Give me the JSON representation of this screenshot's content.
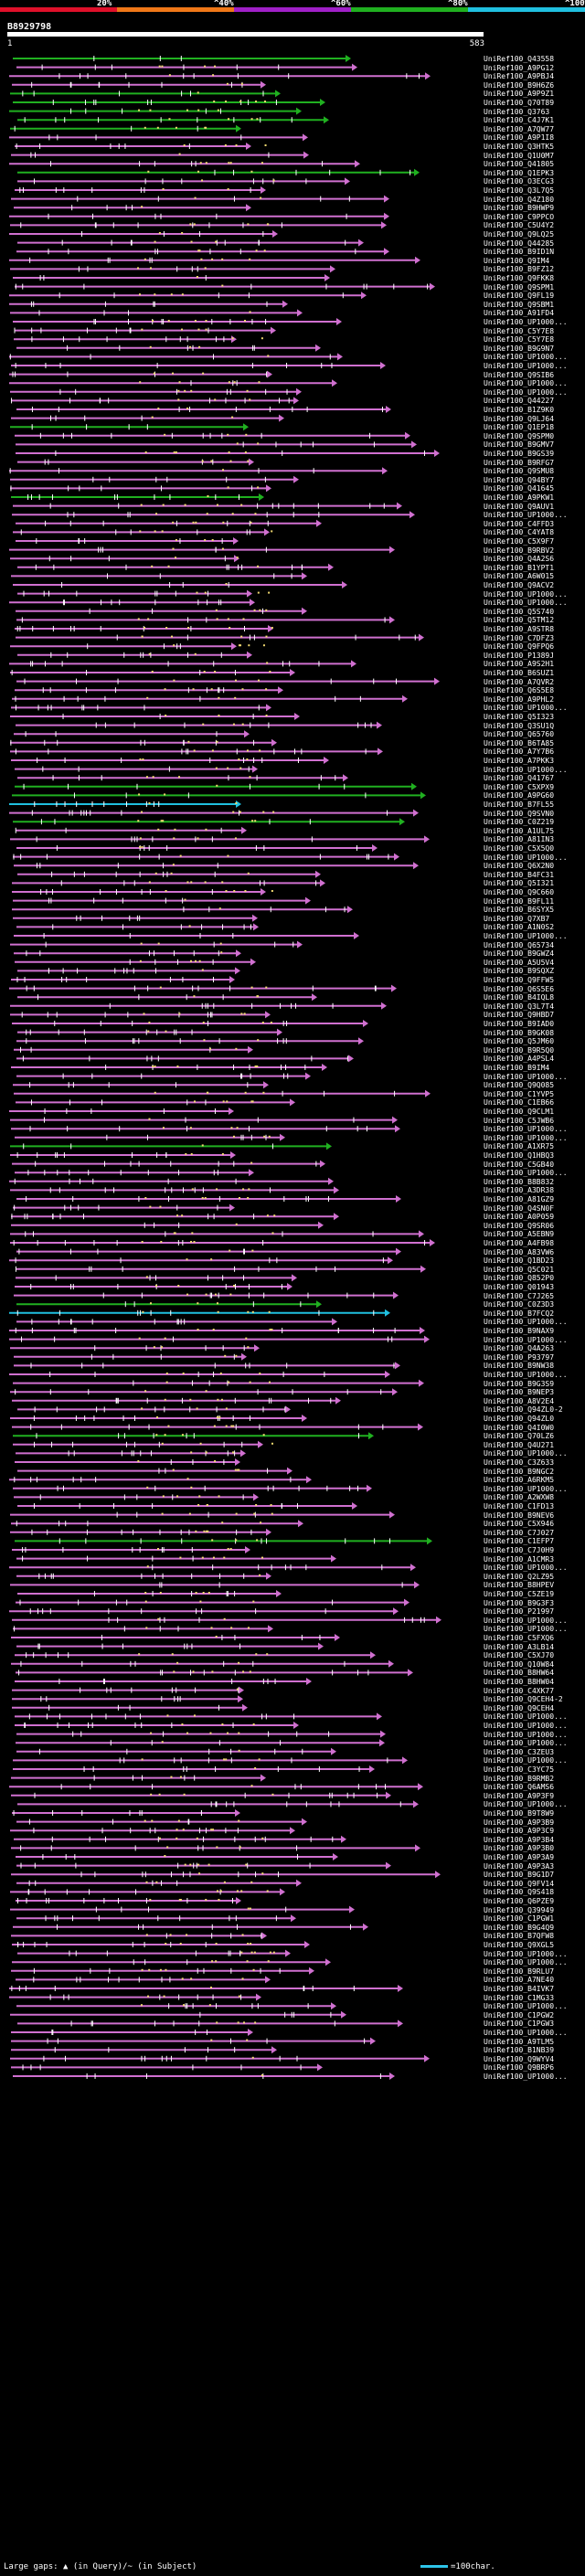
{
  "legend": [
    {
      "label": "20%",
      "color": "#e0102a"
    },
    {
      "label": "^40%",
      "color": "#f07818"
    },
    {
      "label": "^60%",
      "color": "#a020c8"
    },
    {
      "label": "^80%",
      "color": "#20b020"
    },
    {
      "label": "^100%",
      "color": "#20c0e0"
    }
  ],
  "query": {
    "name": "B8929798",
    "start": "1",
    "end": "583"
  },
  "hits": [
    {
      "name": "UniRef100_Q43558",
      "color": "#20b020"
    },
    {
      "name": "UniRef100_A9PG12",
      "color": "#d070d0"
    },
    {
      "name": "UniRef100_A9PBJ4",
      "color": "#d070d0"
    },
    {
      "name": "UniRef100_B9H6Z6",
      "color": "#d070d0"
    },
    {
      "name": "UniRef100_A9P9Z1",
      "color": "#20b020"
    },
    {
      "name": "UniRef100_Q70T89",
      "color": "#20b020"
    },
    {
      "name": "UniRef100_Q3763",
      "color": "#20b020"
    },
    {
      "name": "UniRef100_C4J7K1",
      "color": "#20b020"
    },
    {
      "name": "UniRef100_A7QW77",
      "color": "#20b020"
    },
    {
      "name": "UniRef100_A9P1I8",
      "color": "#d070d0"
    },
    {
      "name": "UniRef100_Q3HTK5",
      "color": "#d070d0"
    },
    {
      "name": "UniRef100_Q1U0M7",
      "color": "#d070d0"
    },
    {
      "name": "UniRef100_Q41805",
      "color": "#d070d0"
    },
    {
      "name": "UniRef100_Q1EPK3",
      "color": "#20b020"
    },
    {
      "name": "UniRef100_O3ECG3",
      "color": "#d070d0"
    },
    {
      "name": "UniRef100_Q3L7Q5",
      "color": "#d070d0"
    },
    {
      "name": "UniRef100_Q4Z180",
      "color": "#d070d0"
    },
    {
      "name": "UniRef100_B9HWP9",
      "color": "#d070d0"
    },
    {
      "name": "UniRef100_C9PPCO",
      "color": "#d070d0"
    },
    {
      "name": "UniRef100_C5U4Y2",
      "color": "#d070d0"
    },
    {
      "name": "UniRef100_Q9LQ25",
      "color": "#d070d0"
    },
    {
      "name": "UniRef100_Q44285",
      "color": "#d070d0"
    },
    {
      "name": "UniRef100_B9ID1N",
      "color": "#d070d0"
    },
    {
      "name": "UniRef100_Q9IM4",
      "color": "#d070d0"
    },
    {
      "name": "UniRef100_B9FZ12",
      "color": "#d070d0"
    },
    {
      "name": "UniRef100_Q9FKK8",
      "color": "#d070d0"
    },
    {
      "name": "UniRef100_Q9SPM1",
      "color": "#d070d0"
    },
    {
      "name": "UniRef100_Q9FL19",
      "color": "#d070d0"
    },
    {
      "name": "UniRef100_Q9SBM1",
      "color": "#d070d0"
    },
    {
      "name": "UniRef100_A91FD4",
      "color": "#d070d0"
    },
    {
      "name": "UniRef100_UP1000...",
      "color": "#d070d0"
    },
    {
      "name": "UniRef100_C5Y7E8",
      "color": "#d070d0"
    },
    {
      "name": "UniRef100_C5Y7E8",
      "color": "#d070d0"
    },
    {
      "name": "UniRef100_B9G9N7",
      "color": "#d070d0"
    },
    {
      "name": "UniRef100_UP1000...",
      "color": "#d070d0"
    },
    {
      "name": "UniRef100_UP1000...",
      "color": "#d070d0"
    },
    {
      "name": "UniRef100_Q9SIB6",
      "color": "#d070d0"
    },
    {
      "name": "UniRef100_UP1000...",
      "color": "#d070d0"
    },
    {
      "name": "UniRef100_UP1000...",
      "color": "#d070d0"
    },
    {
      "name": "UniRef100_Q44227",
      "color": "#d070d0"
    },
    {
      "name": "UniRef100_B1Z9K0",
      "color": "#d070d0"
    },
    {
      "name": "UniRef100_Q9LJ64",
      "color": "#d070d0"
    },
    {
      "name": "UniRef100_Q1EP18",
      "color": "#20b020"
    },
    {
      "name": "UniRef100_Q9SPM0",
      "color": "#d070d0"
    },
    {
      "name": "UniRef100_B9GMV7",
      "color": "#d070d0"
    },
    {
      "name": "UniRef100_B9GS39",
      "color": "#d070d0"
    },
    {
      "name": "UniRef100_B9RFG7",
      "color": "#d070d0"
    },
    {
      "name": "UniRef100_Q9SMU8",
      "color": "#d070d0"
    },
    {
      "name": "UniRef100_Q94BY7",
      "color": "#d070d0"
    },
    {
      "name": "UniRef100_Q41645",
      "color": "#d070d0"
    },
    {
      "name": "UniRef100_A9PKW1",
      "color": "#20b020"
    },
    {
      "name": "UniRef100_Q9AUV1",
      "color": "#d070d0"
    },
    {
      "name": "UniRef100_UP1000...",
      "color": "#d070d0"
    },
    {
      "name": "UniRef100_C4FFD3",
      "color": "#d070d0"
    },
    {
      "name": "UniRef100_C4YAT8",
      "color": "#d070d0"
    },
    {
      "name": "UniRef100_C5X9F7",
      "color": "#d070d0"
    },
    {
      "name": "UniRef100_B9RBV2",
      "color": "#d070d0"
    },
    {
      "name": "UniRef100_Q4A2S6",
      "color": "#d070d0"
    },
    {
      "name": "UniRef100_B1YPT1",
      "color": "#d070d0"
    },
    {
      "name": "UniRef100_A6W015",
      "color": "#d070d0"
    },
    {
      "name": "UniRef100_Q9ACV2",
      "color": "#d070d0"
    },
    {
      "name": "UniRef100_UP1000...",
      "color": "#d070d0"
    },
    {
      "name": "UniRef100_UP1000...",
      "color": "#d070d0"
    },
    {
      "name": "UniRef100_Q5S740",
      "color": "#d070d0"
    },
    {
      "name": "UniRef100_Q5TM12",
      "color": "#d070d0"
    },
    {
      "name": "UniRef100_A9STR8",
      "color": "#d070d0"
    },
    {
      "name": "UniRef100_C7DFZ3",
      "color": "#d070d0"
    },
    {
      "name": "UniRef100_Q9FPQ6",
      "color": "#d070d0"
    },
    {
      "name": "UniRef100_P1389J",
      "color": "#d070d0"
    },
    {
      "name": "UniRef100_A9S2H1",
      "color": "#d070d0"
    },
    {
      "name": "UniRef100_B6SUZ1",
      "color": "#d070d0"
    },
    {
      "name": "UniRef100_A7QVR2",
      "color": "#d070d0"
    },
    {
      "name": "UniRef100_Q6S5E8",
      "color": "#d070d0"
    },
    {
      "name": "UniRef100_A9PHL2",
      "color": "#d070d0"
    },
    {
      "name": "UniRef100_UP1000...",
      "color": "#d070d0"
    },
    {
      "name": "UniRef100_Q5I323",
      "color": "#d070d0"
    },
    {
      "name": "UniRef100_Q3SU1Q",
      "color": "#d070d0"
    },
    {
      "name": "UniRef100_Q65760",
      "color": "#d070d0"
    },
    {
      "name": "UniRef100_B6TA85",
      "color": "#d070d0"
    },
    {
      "name": "UniRef100_A7Y7B6",
      "color": "#d070d0"
    },
    {
      "name": "UniRef100_A7PKK3",
      "color": "#d070d0"
    },
    {
      "name": "UniRef100_UP1000...",
      "color": "#d070d0"
    },
    {
      "name": "UniRef100_Q41767",
      "color": "#d070d0"
    },
    {
      "name": "UniRef100_C5XPX9",
      "color": "#20b020"
    },
    {
      "name": "UniRef100_A9PG60",
      "color": "#20b020"
    },
    {
      "name": "UniRef100_B7FL55",
      "color": "#20c0e0"
    },
    {
      "name": "UniRef100_Q9SVN0",
      "color": "#d070d0"
    },
    {
      "name": "UniRef100_C0Z219",
      "color": "#20b020"
    },
    {
      "name": "UniRef100_A1UL75",
      "color": "#d070d0"
    },
    {
      "name": "UniRef100_A81IN3",
      "color": "#d070d0"
    },
    {
      "name": "UniRef100_C5X5Q0",
      "color": "#d070d0"
    },
    {
      "name": "UniRef100_UP1000...",
      "color": "#d070d0"
    },
    {
      "name": "UniRef100_Q6X2N0",
      "color": "#d070d0"
    },
    {
      "name": "UniRef100_B4FC31",
      "color": "#d070d0"
    },
    {
      "name": "UniRef100_Q5I321",
      "color": "#d070d0"
    },
    {
      "name": "UniRef100_Q9C660",
      "color": "#d070d0"
    },
    {
      "name": "UniRef100_B9FL11",
      "color": "#d070d0"
    },
    {
      "name": "UniRef100_B6SYX5",
      "color": "#d070d0"
    },
    {
      "name": "UniRef100_Q7XB7",
      "color": "#d070d0"
    },
    {
      "name": "UniRef100_A1N0S2",
      "color": "#d070d0"
    },
    {
      "name": "UniRef100_UP1000...",
      "color": "#d070d0"
    },
    {
      "name": "UniRef100_Q65734",
      "color": "#d070d0"
    },
    {
      "name": "UniRef100_B9GWZ4",
      "color": "#d070d0"
    },
    {
      "name": "UniRef100_A5U5V4",
      "color": "#d070d0"
    },
    {
      "name": "UniRef100_B9SQXZ",
      "color": "#d070d0"
    },
    {
      "name": "UniRef100_Q9FFW5",
      "color": "#d070d0"
    },
    {
      "name": "UniRef100_Q6S5E6",
      "color": "#d070d0"
    },
    {
      "name": "UniRef100_B4IQL8",
      "color": "#d070d0"
    },
    {
      "name": "UniRef100_Q3L7T4",
      "color": "#d070d0"
    },
    {
      "name": "UniRef100_Q9HBD7",
      "color": "#d070d0"
    },
    {
      "name": "UniRef100_B9IAD0",
      "color": "#d070d0"
    },
    {
      "name": "UniRef100_B9GK08",
      "color": "#d070d0"
    },
    {
      "name": "UniRef100_Q5JM60",
      "color": "#d070d0"
    },
    {
      "name": "UniRef100_B9R5Q0",
      "color": "#d070d0"
    },
    {
      "name": "UniRef100_A4PSL4",
      "color": "#d070d0"
    },
    {
      "name": "UniRef100_B9IM4",
      "color": "#d070d0"
    },
    {
      "name": "UniRef100_UP1000...",
      "color": "#d070d0"
    },
    {
      "name": "UniRef100_Q9Q085",
      "color": "#d070d0"
    },
    {
      "name": "UniRef100_C1YVP5",
      "color": "#d070d0"
    },
    {
      "name": "UniRef100_C1EB66",
      "color": "#d070d0"
    },
    {
      "name": "UniRef100_Q9CLM1",
      "color": "#d070d0"
    },
    {
      "name": "UniRef100_C5JWB6",
      "color": "#d070d0"
    },
    {
      "name": "UniRef100_UP1000...",
      "color": "#d070d0"
    },
    {
      "name": "UniRef100_UP1000...",
      "color": "#d070d0"
    },
    {
      "name": "UniRef100_A1XR75",
      "color": "#20b020"
    },
    {
      "name": "UniRef100_Q1HBQ3",
      "color": "#d070d0"
    },
    {
      "name": "UniRef100_C5GB40",
      "color": "#d070d0"
    },
    {
      "name": "UniRef100_UP1000...",
      "color": "#d070d0"
    },
    {
      "name": "UniRef100_B8B832",
      "color": "#d070d0"
    },
    {
      "name": "UniRef100_A3DR38",
      "color": "#d070d0"
    },
    {
      "name": "UniRef100_A81GZ9",
      "color": "#d070d0"
    },
    {
      "name": "UniRef100_Q4SN0F",
      "color": "#d070d0"
    },
    {
      "name": "UniRef100_A0P059",
      "color": "#d070d0"
    },
    {
      "name": "UniRef100_Q9SR06",
      "color": "#d070d0"
    },
    {
      "name": "UniRef100_A5EBN9",
      "color": "#d070d0"
    },
    {
      "name": "UniRef100_A4FB98",
      "color": "#d070d0"
    },
    {
      "name": "UniRef100_A83VW6",
      "color": "#d070d0"
    },
    {
      "name": "UniRef100_Q1BD23",
      "color": "#d070d0"
    },
    {
      "name": "UniRef100_Q5C021",
      "color": "#d070d0"
    },
    {
      "name": "UniRef100_Q852P0",
      "color": "#d070d0"
    },
    {
      "name": "UniRef100_Q01943",
      "color": "#d070d0"
    },
    {
      "name": "UniRef100_C7J265",
      "color": "#d070d0"
    },
    {
      "name": "UniRef100_C0Z3D3",
      "color": "#20b020"
    },
    {
      "name": "UniRef100_B7FCQ2",
      "color": "#20c0e0"
    },
    {
      "name": "UniRef100_UP1000...",
      "color": "#d070d0"
    },
    {
      "name": "UniRef100_B9NAX9",
      "color": "#d070d0"
    },
    {
      "name": "UniRef100_UP1000...",
      "color": "#d070d0"
    },
    {
      "name": "UniRef100_Q4A263",
      "color": "#d070d0"
    },
    {
      "name": "UniRef100_P93797",
      "color": "#d070d0"
    },
    {
      "name": "UniRef100_B9NW38",
      "color": "#d070d0"
    },
    {
      "name": "UniRef100_UP1000...",
      "color": "#d070d0"
    },
    {
      "name": "UniRef100_B9G3S9",
      "color": "#d070d0"
    },
    {
      "name": "UniRef100_B9NEP3",
      "color": "#d070d0"
    },
    {
      "name": "UniRef100_A8V2E4",
      "color": "#d070d0"
    },
    {
      "name": "UniRef100_Q94ZL0-2",
      "color": "#d070d0"
    },
    {
      "name": "UniRef100_Q94ZL0",
      "color": "#d070d0"
    },
    {
      "name": "UniRef100_Q4I0W0",
      "color": "#d070d0"
    },
    {
      "name": "UniRef100_Q70LZ6",
      "color": "#20b020"
    },
    {
      "name": "UniRef100_Q4U271",
      "color": "#d070d0"
    },
    {
      "name": "UniRef100_UP1000...",
      "color": "#d070d0"
    },
    {
      "name": "UniRef100_C3Z633",
      "color": "#d070d0"
    },
    {
      "name": "UniRef100_B9NGC2",
      "color": "#d070d0"
    },
    {
      "name": "UniRef100_A6RKM5",
      "color": "#d070d0"
    },
    {
      "name": "UniRef100_UP1000...",
      "color": "#d070d0"
    },
    {
      "name": "UniRef100_A2WXW8",
      "color": "#d070d0"
    },
    {
      "name": "UniRef100_C1FD13",
      "color": "#d070d0"
    },
    {
      "name": "UniRef100_B9NEV6",
      "color": "#d070d0"
    },
    {
      "name": "UniRef100_C5X946",
      "color": "#d070d0"
    },
    {
      "name": "UniRef100_C7J027",
      "color": "#d070d0"
    },
    {
      "name": "UniRef100_C1EFP7",
      "color": "#20b020"
    },
    {
      "name": "UniRef100_C7J0H9",
      "color": "#d070d0"
    },
    {
      "name": "UniRef100_A1CMR3",
      "color": "#d070d0"
    },
    {
      "name": "UniRef100_UP1000...",
      "color": "#d070d0"
    },
    {
      "name": "UniRef100_Q2LZ95",
      "color": "#d070d0"
    },
    {
      "name": "UniRef100_B8HPEV",
      "color": "#d070d0"
    },
    {
      "name": "UniRef100_C5ZE19",
      "color": "#d070d0"
    },
    {
      "name": "UniRef100_B9G3F3",
      "color": "#d070d0"
    },
    {
      "name": "UniRef100_P21997",
      "color": "#d070d0"
    },
    {
      "name": "UniRef100_UP1000...",
      "color": "#d070d0"
    },
    {
      "name": "UniRef100_UP1000...",
      "color": "#d070d0"
    },
    {
      "name": "UniRef100_C5FXQ6",
      "color": "#d070d0"
    },
    {
      "name": "UniRef100_A3LB14",
      "color": "#d070d0"
    },
    {
      "name": "UniRef100_C5XJ70",
      "color": "#d070d0"
    },
    {
      "name": "UniRef100_Q10W84",
      "color": "#d070d0"
    },
    {
      "name": "UniRef100_B8HW64",
      "color": "#d070d0"
    },
    {
      "name": "UniRef100_B8HW04",
      "color": "#d070d0"
    },
    {
      "name": "UniRef100_C4XK77",
      "color": "#d070d0"
    },
    {
      "name": "UniRef100_Q9CEH4-2",
      "color": "#d070d0"
    },
    {
      "name": "UniRef100_Q9CEH4",
      "color": "#d070d0"
    },
    {
      "name": "UniRef100_UP1000...",
      "color": "#d070d0"
    },
    {
      "name": "UniRef100_UP1000...",
      "color": "#d070d0"
    },
    {
      "name": "UniRef100_UP1000...",
      "color": "#d070d0"
    },
    {
      "name": "UniRef100_UP1000...",
      "color": "#d070d0"
    },
    {
      "name": "UniRef100_C3ZEU3",
      "color": "#d070d0"
    },
    {
      "name": "UniRef100_UP1000...",
      "color": "#d070d0"
    },
    {
      "name": "UniRef100_C3YC75",
      "color": "#d070d0"
    },
    {
      "name": "UniRef100_B9RMB2",
      "color": "#d070d0"
    },
    {
      "name": "UniRef100_Q6AMS6",
      "color": "#d070d0"
    },
    {
      "name": "UniRef100_A9P3F9",
      "color": "#d070d0"
    },
    {
      "name": "UniRef100_UP1000...",
      "color": "#d070d0"
    },
    {
      "name": "UniRef100_B9T8W9",
      "color": "#d070d0"
    },
    {
      "name": "UniRef100_A9P3B9",
      "color": "#d070d0"
    },
    {
      "name": "UniRef100_A9P3C9",
      "color": "#d070d0"
    },
    {
      "name": "UniRef100_A9P3B4",
      "color": "#d070d0"
    },
    {
      "name": "UniRef100_A9P3B0",
      "color": "#d070d0"
    },
    {
      "name": "UniRef100_A9P3A9",
      "color": "#d070d0"
    },
    {
      "name": "UniRef100_A9P3A3",
      "color": "#d070d0"
    },
    {
      "name": "UniRef100_B9G1D7",
      "color": "#d070d0"
    },
    {
      "name": "UniRef100_Q9FV14",
      "color": "#d070d0"
    },
    {
      "name": "UniRef100_Q9S418",
      "color": "#d070d0"
    },
    {
      "name": "UniRef100_Q6PZE9",
      "color": "#d070d0"
    },
    {
      "name": "UniRef100_Q39949",
      "color": "#d070d0"
    },
    {
      "name": "UniRef100_C1PGW1",
      "color": "#d070d0"
    },
    {
      "name": "UniRef100_B9G4Q9",
      "color": "#d070d0"
    },
    {
      "name": "UniRef100_B7QFW8",
      "color": "#d070d0"
    },
    {
      "name": "UniRef100_Q9XGL5",
      "color": "#d070d0"
    },
    {
      "name": "UniRef100_UP1000...",
      "color": "#d070d0"
    },
    {
      "name": "UniRef100_UP1000...",
      "color": "#d070d0"
    },
    {
      "name": "UniRef100_B9RLU7",
      "color": "#d070d0"
    },
    {
      "name": "UniRef100_A7NE40",
      "color": "#d070d0"
    },
    {
      "name": "UniRef100_B4IVK7",
      "color": "#d070d0"
    },
    {
      "name": "UniRef100_C1MG33",
      "color": "#d070d0"
    },
    {
      "name": "UniRef100_UP1000...",
      "color": "#d070d0"
    },
    {
      "name": "UniRef100_C1PGW2",
      "color": "#d070d0"
    },
    {
      "name": "UniRef100_C1PGW3",
      "color": "#d070d0"
    },
    {
      "name": "UniRef100_UP1000...",
      "color": "#d070d0"
    },
    {
      "name": "UniRef100_A9TLM5",
      "color": "#d070d0"
    },
    {
      "name": "UniRef100_B1NB39",
      "color": "#d070d0"
    },
    {
      "name": "UniRef100_Q9WYV4",
      "color": "#d070d0"
    },
    {
      "name": "UniRef100_Q9BRP6",
      "color": "#d070d0"
    },
    {
      "name": "UniRef100_UP1000...",
      "color": "#d070d0"
    }
  ],
  "footer": {
    "text": "Large gaps: ▲ (in Query)/~ (in Subject)",
    "scale": "=100char."
  }
}
